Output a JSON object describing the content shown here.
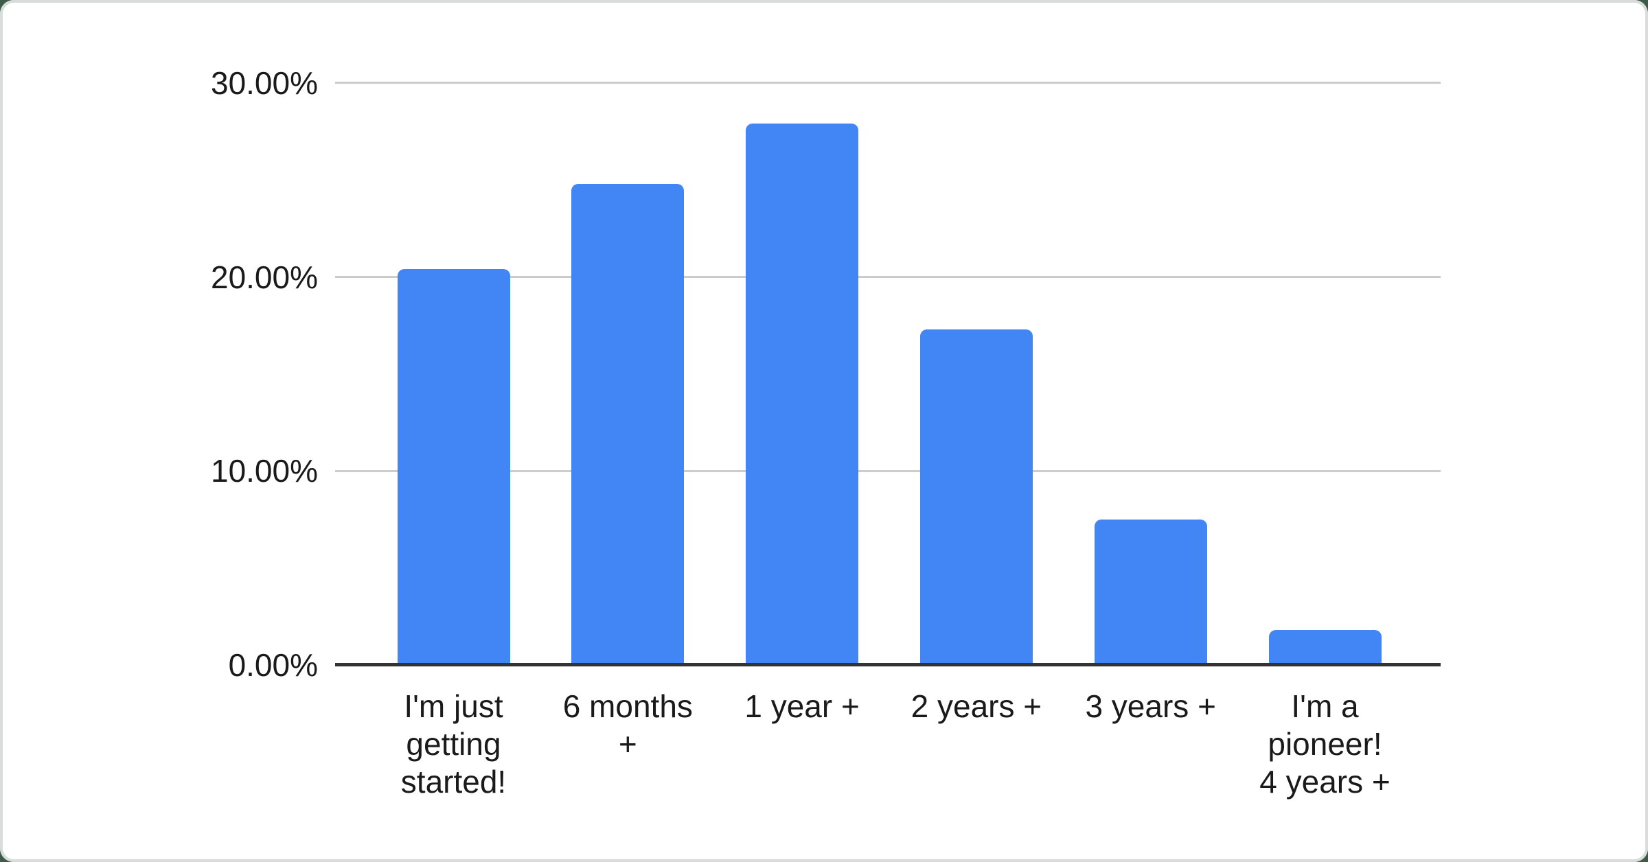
{
  "page": {
    "background_color": "#3D5B49",
    "card_color": "#FFFFFF",
    "card_border_color": "#D8DDDB"
  },
  "chart_data": {
    "type": "bar",
    "title": "",
    "xlabel": "",
    "ylabel": "",
    "legend": "none",
    "grid": true,
    "categories": [
      "I'm just getting started!",
      "6 months +",
      "1 year +",
      "2 years +",
      "3 years +",
      "I'm a pioneer! 4 years +"
    ],
    "category_lines": [
      [
        "I'm just",
        "getting",
        "started!"
      ],
      [
        "6 months",
        "+"
      ],
      [
        "1 year +"
      ],
      [
        "2 years +"
      ],
      [
        "3 years +"
      ],
      [
        "I'm a",
        "pioneer!",
        "4 years +"
      ]
    ],
    "values": [
      20.4,
      24.8,
      27.9,
      17.3,
      7.5,
      1.8
    ],
    "value_unit": "%",
    "y_ticks": [
      "0.00%",
      "10.00%",
      "20.00%",
      "30.00%"
    ],
    "y_tick_values": [
      0,
      10,
      20,
      30
    ],
    "ylim": [
      0,
      31.8
    ],
    "bar_color": "#4285F4",
    "gridline_color": "#CCCCCC",
    "axis_line_color": "#333333",
    "label_color": "#1A1A1A"
  }
}
